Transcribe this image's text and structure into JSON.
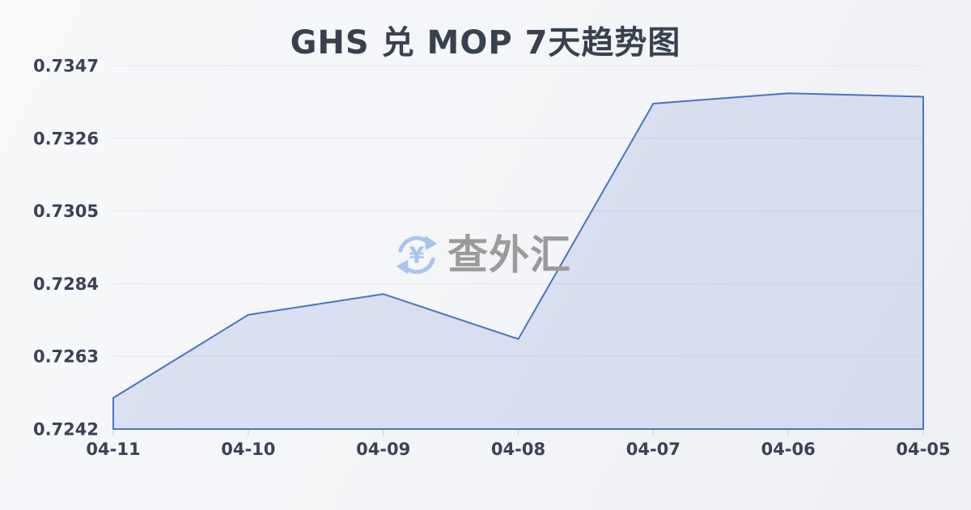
{
  "page": {
    "title": "GHS 兑 MOP 7天趋势图"
  },
  "watermark": {
    "text": "查外汇",
    "icon": "currency-exchange-icon",
    "icon_symbol": "¥"
  },
  "chart_data": {
    "type": "area",
    "title": "GHS 兑 MOP 7天趋势图",
    "categories": [
      "04-11",
      "04-10",
      "04-09",
      "04-08",
      "04-07",
      "04-06",
      "04-05"
    ],
    "values": [
      0.7251,
      0.7275,
      0.7281,
      0.7268,
      0.7336,
      0.7339,
      0.7338
    ],
    "series_name": "GHS/MOP",
    "xlabel": "",
    "ylabel": "",
    "ylim": [
      0.7242,
      0.7347
    ],
    "yticks": [
      0.7242,
      0.7263,
      0.7284,
      0.7305,
      0.7326,
      0.7347
    ],
    "ytick_labels": [
      "0.7242",
      "0.7263",
      "0.7284",
      "0.7305",
      "0.7326",
      "0.7347"
    ],
    "grid": "horizontal",
    "legend": "none",
    "colors": {
      "line": "#4a72c4",
      "fill": "rgba(74, 114, 196, 0.16)",
      "grid": "#e3e5ea",
      "axis_tick": "#c9cdd4",
      "tick_text": "#3a4254",
      "title_text": "#39414f",
      "watermark_text": "#9b9b9b",
      "watermark_icon": "#a9c5ef",
      "background": "#f3f5f8"
    }
  }
}
